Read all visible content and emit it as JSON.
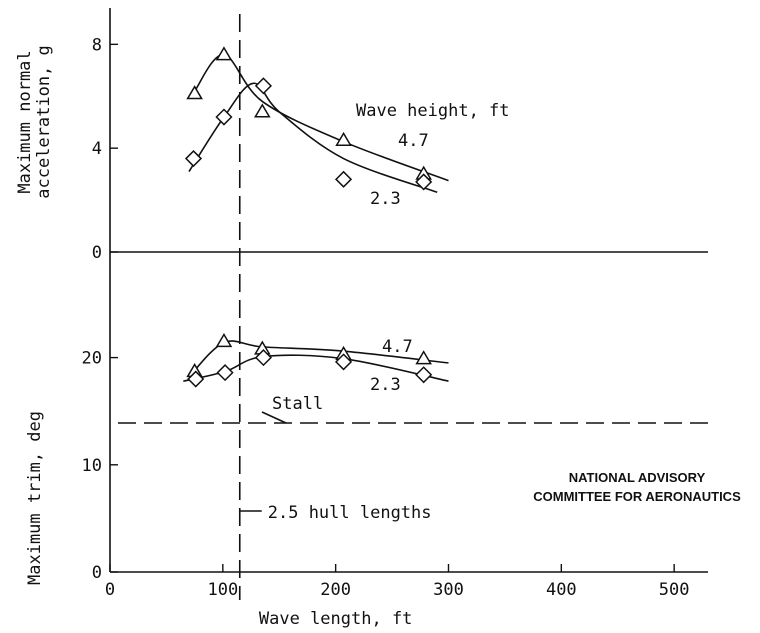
{
  "chart_data": {
    "type": "line",
    "x_axis": {
      "label": "Wave length, ft",
      "range": [
        0,
        530
      ],
      "ticks": [
        0,
        100,
        200,
        300,
        400,
        500
      ]
    },
    "panels": [
      {
        "id": "acceleration",
        "ylabel_lines": [
          "Maximum normal",
          "acceleration, g"
        ],
        "range": [
          0,
          9.4
        ],
        "ticks": [
          0,
          4,
          8
        ],
        "series_label": "Wave height, ft",
        "series": [
          {
            "name": "4.7",
            "marker": "triangle",
            "points": [
              [
                75,
                6.1
              ],
              [
                101,
                7.6
              ],
              [
                135,
                5.4
              ],
              [
                207,
                4.3
              ],
              [
                278,
                3.0
              ]
            ],
            "curve": [
              [
                75,
                6.2
              ],
              [
                101,
                7.6
              ],
              [
                135,
                5.8
              ],
              [
                207,
                4.25
              ],
              [
                300,
                2.75
              ]
            ]
          },
          {
            "name": "2.3",
            "marker": "diamond",
            "points": [
              [
                74,
                3.6
              ],
              [
                101,
                5.2
              ],
              [
                136,
                6.4
              ],
              [
                207,
                2.8
              ],
              [
                278,
                2.7
              ]
            ],
            "curve": [
              [
                70,
                3.1
              ],
              [
                101,
                5.2
              ],
              [
                127,
                6.5
              ],
              [
                150,
                5.4
              ],
              [
                207,
                3.6
              ],
              [
                290,
                2.3
              ]
            ]
          }
        ]
      },
      {
        "id": "trim",
        "ylabel": "Maximum trim, deg",
        "range": [
          0,
          25
        ],
        "ticks": [
          0,
          10,
          20
        ],
        "series": [
          {
            "name": "4.7",
            "marker": "triangle",
            "points": [
              [
                75,
                18.7
              ],
              [
                101,
                21.5
              ],
              [
                135,
                20.8
              ],
              [
                207,
                20.3
              ],
              [
                278,
                19.9
              ]
            ],
            "curve": [
              [
                70,
                18.2
              ],
              [
                101,
                21.4
              ],
              [
                135,
                21.0
              ],
              [
                207,
                20.6
              ],
              [
                300,
                19.5
              ]
            ]
          },
          {
            "name": "2.3",
            "marker": "diamond",
            "points": [
              [
                76,
                18.0
              ],
              [
                102,
                18.6
              ],
              [
                136,
                20.0
              ],
              [
                207,
                19.6
              ],
              [
                278,
                18.4
              ]
            ],
            "curve": [
              [
                65,
                17.8
              ],
              [
                102,
                18.7
              ],
              [
                136,
                20.1
              ],
              [
                207,
                19.9
              ],
              [
                300,
                17.8
              ]
            ]
          }
        ],
        "stall_line": {
          "label": "Stall",
          "value": 13.9
        }
      }
    ],
    "reference_line": {
      "label": "2.5 hull lengths",
      "x": 115
    },
    "credit": [
      "NATIONAL ADVISORY",
      "COMMITTEE FOR AERONAUTICS"
    ]
  }
}
